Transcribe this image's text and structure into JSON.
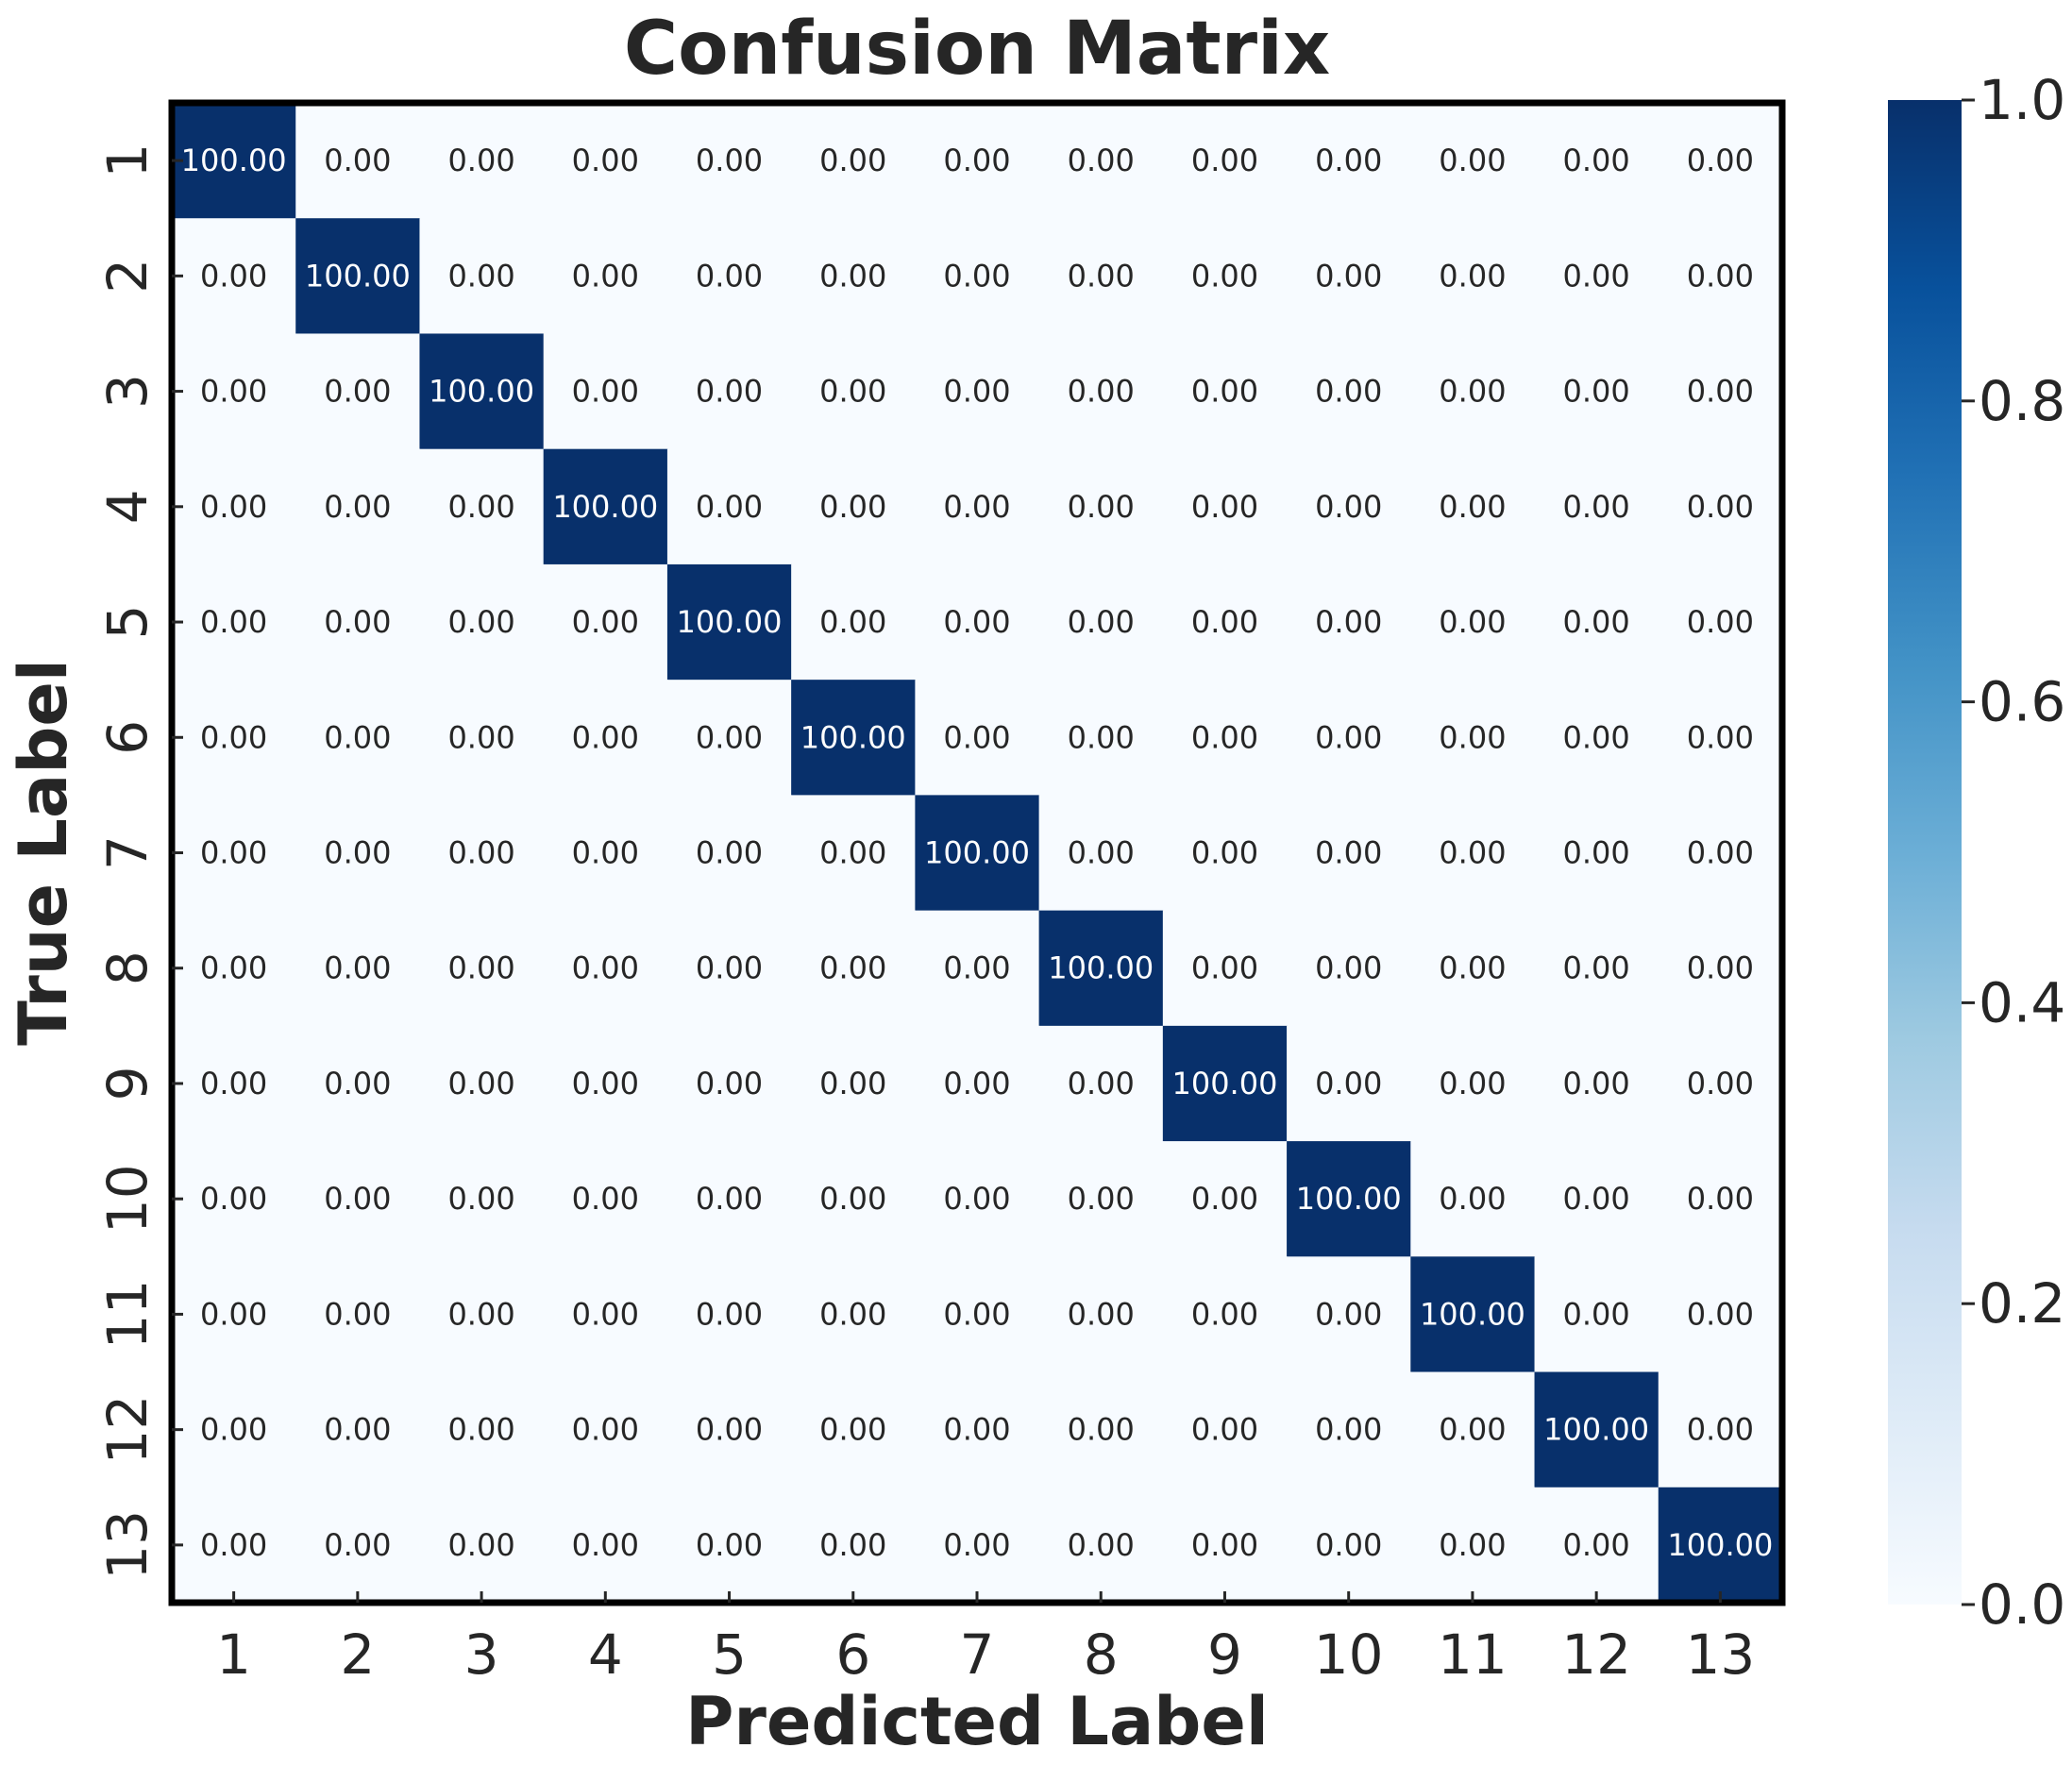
{
  "chart_data": {
    "type": "heatmap",
    "title": "Confusion Matrix",
    "xlabel": "Predicted Label",
    "ylabel": "True Label",
    "x_categories": [
      "1",
      "2",
      "3",
      "4",
      "5",
      "6",
      "7",
      "8",
      "9",
      "10",
      "11",
      "12",
      "13"
    ],
    "y_categories": [
      "1",
      "2",
      "3",
      "4",
      "5",
      "6",
      "7",
      "8",
      "9",
      "10",
      "11",
      "12",
      "13"
    ],
    "values": [
      [
        100,
        0,
        0,
        0,
        0,
        0,
        0,
        0,
        0,
        0,
        0,
        0,
        0
      ],
      [
        0,
        100,
        0,
        0,
        0,
        0,
        0,
        0,
        0,
        0,
        0,
        0,
        0
      ],
      [
        0,
        0,
        100,
        0,
        0,
        0,
        0,
        0,
        0,
        0,
        0,
        0,
        0
      ],
      [
        0,
        0,
        0,
        100,
        0,
        0,
        0,
        0,
        0,
        0,
        0,
        0,
        0
      ],
      [
        0,
        0,
        0,
        0,
        100,
        0,
        0,
        0,
        0,
        0,
        0,
        0,
        0
      ],
      [
        0,
        0,
        0,
        0,
        0,
        100,
        0,
        0,
        0,
        0,
        0,
        0,
        0
      ],
      [
        0,
        0,
        0,
        0,
        0,
        0,
        100,
        0,
        0,
        0,
        0,
        0,
        0
      ],
      [
        0,
        0,
        0,
        0,
        0,
        0,
        0,
        100,
        0,
        0,
        0,
        0,
        0
      ],
      [
        0,
        0,
        0,
        0,
        0,
        0,
        0,
        0,
        100,
        0,
        0,
        0,
        0
      ],
      [
        0,
        0,
        0,
        0,
        0,
        0,
        0,
        0,
        0,
        100,
        0,
        0,
        0
      ],
      [
        0,
        0,
        0,
        0,
        0,
        0,
        0,
        0,
        0,
        0,
        100,
        0,
        0
      ],
      [
        0,
        0,
        0,
        0,
        0,
        0,
        0,
        0,
        0,
        0,
        0,
        100,
        0
      ],
      [
        0,
        0,
        0,
        0,
        0,
        0,
        0,
        0,
        0,
        0,
        0,
        0,
        100
      ]
    ],
    "value_format": "0.00",
    "colorbar": {
      "range": [
        0.0,
        1.0
      ],
      "ticks": [
        "0.0",
        "0.2",
        "0.4",
        "0.6",
        "0.8",
        "1.0"
      ],
      "colormap": "Blues"
    },
    "colors": {
      "low": "#f7fbff",
      "high": "#08306b",
      "text_dark": "#262626",
      "text_light": "#ffffff"
    },
    "grid": false
  }
}
